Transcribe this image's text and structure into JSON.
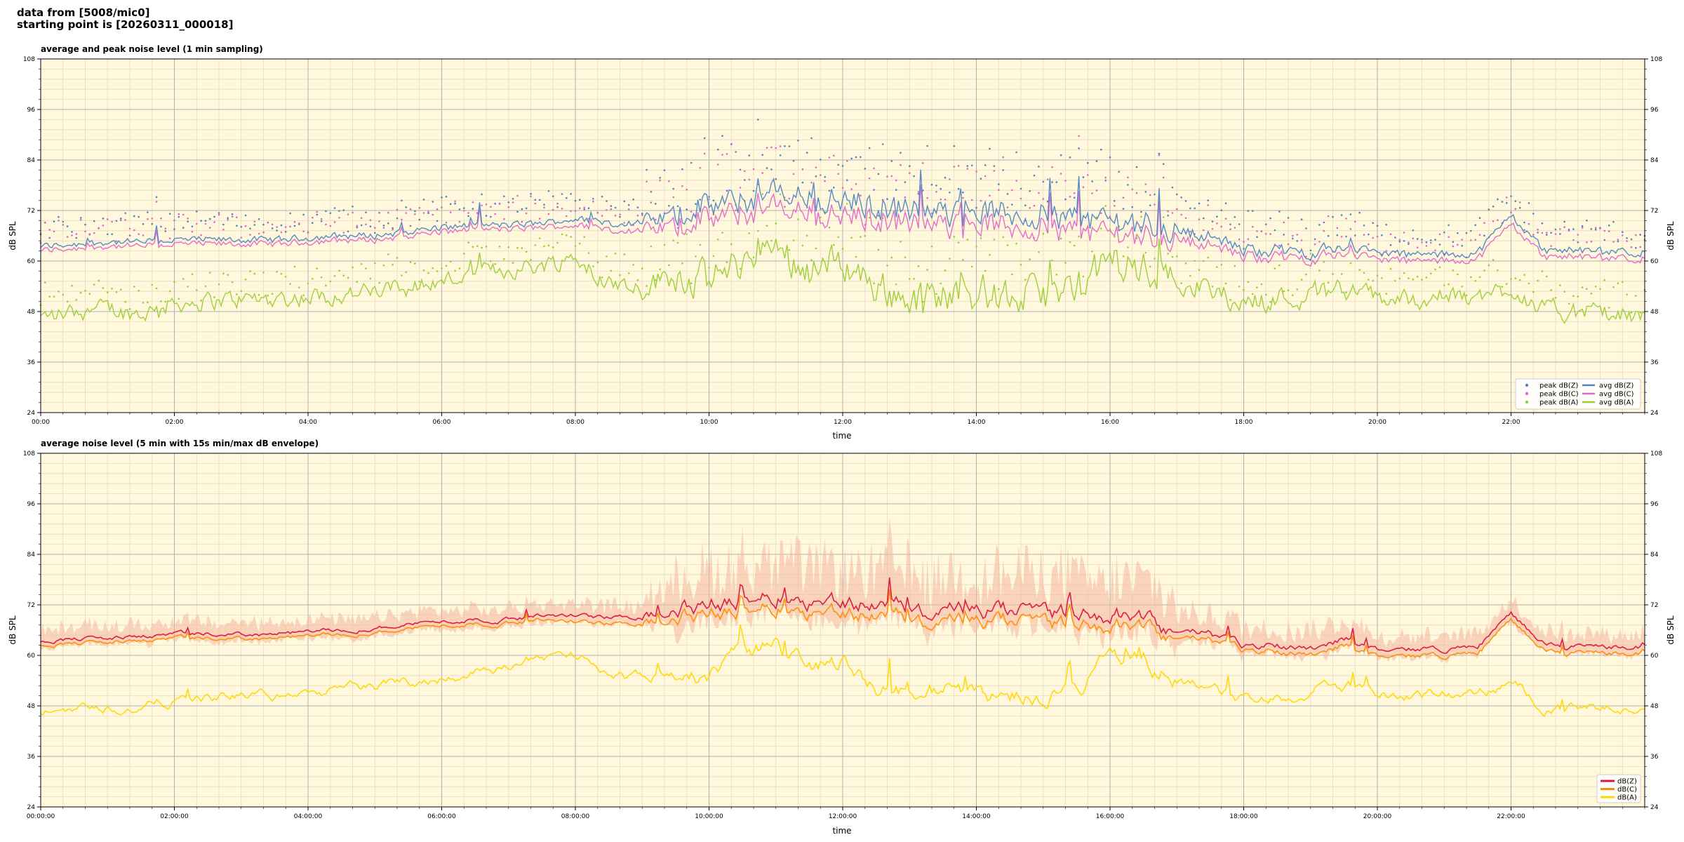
{
  "header": {
    "line1": "data from [5008/mic0]",
    "line2": "starting point is [20260311_000018]"
  },
  "colors": {
    "background": "#fff8dc",
    "dbz": "#4f84c4",
    "dbc": "#e066c8",
    "dba": "#9acd32",
    "dbz_bottom": "#dc143c",
    "dbc_bottom": "#ff8c00",
    "dba_bottom": "#ffd700",
    "envelope": "#f4b6a0"
  },
  "chart_data": [
    {
      "type": "line",
      "title": "average and peak noise level (1 min sampling)",
      "xlabel": "time",
      "ylabel": "dB SPL",
      "xlim": [
        0,
        24
      ],
      "ylim": [
        24,
        108
      ],
      "yticks": [
        24,
        36,
        48,
        60,
        72,
        84,
        96,
        108
      ],
      "xtick_labels": [
        "00:00",
        "02:00",
        "04:00",
        "06:00",
        "08:00",
        "10:00",
        "12:00",
        "14:00",
        "16:00",
        "18:00",
        "20:00",
        "22:00"
      ],
      "grid": true,
      "legend_position": "bottom-right",
      "legend": [
        "peak dB(Z)",
        "peak dB(C)",
        "peak dB(A)",
        "avg dB(Z)",
        "avg dB(C)",
        "avg dB(A)"
      ],
      "x": [
        0,
        0.5,
        1,
        1.5,
        2,
        2.5,
        3,
        3.5,
        4,
        4.5,
        5,
        5.5,
        6,
        6.5,
        7,
        7.5,
        8,
        8.5,
        9,
        9.5,
        10,
        10.5,
        11,
        11.5,
        12,
        12.5,
        13,
        13.5,
        14,
        14.5,
        15,
        15.5,
        16,
        16.5,
        17,
        17.5,
        18,
        18.5,
        19,
        19.5,
        20,
        20.5,
        21,
        21.5,
        22,
        22.5,
        23,
        23.5,
        24
      ],
      "series": [
        {
          "name": "avg dB(Z)",
          "values": [
            63.5,
            64.0,
            64.5,
            64.5,
            65.0,
            65.0,
            65.0,
            65.0,
            65.5,
            66.0,
            66.0,
            67.0,
            68.0,
            68.5,
            68.5,
            69.0,
            70.0,
            69.0,
            69.0,
            71.0,
            73.0,
            74.0,
            76.0,
            75.0,
            74.0,
            73.0,
            72.0,
            71.0,
            72.0,
            71.0,
            71.0,
            70.0,
            70.0,
            69.0,
            67.0,
            66.0,
            62.5,
            62.5,
            62.0,
            63.5,
            62.0,
            61.5,
            61.5,
            62.0,
            71.0,
            62.5,
            62.5,
            62.0,
            62.0
          ]
        },
        {
          "name": "avg dB(C)",
          "values": [
            62.5,
            63.0,
            63.5,
            63.5,
            64.0,
            64.0,
            64.0,
            64.0,
            64.5,
            65.0,
            65.0,
            66.0,
            67.0,
            67.5,
            67.5,
            68.0,
            68.5,
            67.5,
            67.0,
            68.5,
            70.0,
            71.0,
            72.5,
            71.5,
            70.5,
            70.0,
            69.0,
            68.0,
            69.0,
            68.0,
            68.0,
            67.0,
            67.0,
            66.0,
            65.0,
            64.0,
            61.0,
            61.0,
            60.5,
            62.0,
            60.5,
            60.0,
            60.0,
            60.5,
            69.0,
            61.0,
            61.0,
            60.5,
            60.5
          ]
        },
        {
          "name": "avg dB(A)",
          "values": [
            46.5,
            48.0,
            48.5,
            47.5,
            50.0,
            50.5,
            51.0,
            51.0,
            51.5,
            52.0,
            52.5,
            54.0,
            55.0,
            57.0,
            58.0,
            59.0,
            61.0,
            55.0,
            54.0,
            57.0,
            55.0,
            60.0,
            63.0,
            58.0,
            60.0,
            54.0,
            51.0,
            52.0,
            52.5,
            51.0,
            52.0,
            53.0,
            60.0,
            58.0,
            56.0,
            53.0,
            50.0,
            51.0,
            52.0,
            54.0,
            51.0,
            51.0,
            51.5,
            51.0,
            54.0,
            48.0,
            48.0,
            47.0,
            46.5
          ]
        }
      ]
    },
    {
      "type": "line",
      "title": "average noise level (5 min with 15s min/max dB envelope)",
      "xlabel": "time",
      "ylabel": "dB SPL",
      "xlim": [
        0,
        24
      ],
      "ylim": [
        24,
        108
      ],
      "yticks": [
        24,
        36,
        48,
        60,
        72,
        84,
        96,
        108
      ],
      "xtick_labels": [
        "00:00:00",
        "02:00:00",
        "04:00:00",
        "06:00:00",
        "08:00:00",
        "10:00:00",
        "12:00:00",
        "14:00:00",
        "16:00:00",
        "18:00:00",
        "20:00:00",
        "22:00:00"
      ],
      "grid": true,
      "legend_position": "bottom-right",
      "legend": [
        "dB(Z)",
        "dB(C)",
        "dB(A)"
      ],
      "x": [
        0,
        0.5,
        1,
        1.5,
        2,
        2.5,
        3,
        3.5,
        4,
        4.5,
        5,
        5.5,
        6,
        6.5,
        7,
        7.5,
        8,
        8.5,
        9,
        9.5,
        10,
        10.5,
        11,
        11.5,
        12,
        12.5,
        13,
        13.5,
        14,
        14.5,
        15,
        15.5,
        16,
        16.5,
        17,
        17.5,
        18,
        18.5,
        19,
        19.5,
        20,
        20.5,
        21,
        21.5,
        22,
        22.5,
        23,
        23.5,
        24
      ],
      "series": [
        {
          "name": "dB(Z)",
          "values": [
            63.5,
            64.0,
            64.0,
            64.5,
            65.0,
            65.0,
            65.0,
            65.0,
            65.5,
            66.0,
            66.5,
            67.5,
            68.0,
            68.5,
            68.5,
            69.5,
            69.5,
            69.0,
            69.0,
            71.0,
            72.0,
            73.5,
            74.5,
            73.5,
            73.0,
            72.0,
            71.0,
            70.0,
            70.5,
            70.0,
            70.0,
            69.5,
            70.0,
            68.0,
            66.0,
            65.0,
            62.0,
            62.5,
            62.0,
            64.0,
            61.5,
            61.5,
            61.5,
            62.0,
            70.0,
            62.5,
            62.0,
            62.0,
            62.0
          ]
        },
        {
          "name": "dB(C)",
          "values": [
            62.5,
            63.0,
            63.0,
            63.5,
            64.0,
            64.0,
            64.0,
            64.0,
            64.5,
            65.0,
            65.5,
            66.5,
            67.0,
            67.5,
            67.5,
            68.5,
            68.0,
            67.5,
            67.5,
            69.0,
            70.0,
            71.0,
            72.0,
            71.0,
            70.5,
            69.5,
            68.5,
            67.5,
            68.0,
            67.5,
            67.5,
            67.0,
            67.5,
            66.0,
            64.5,
            63.5,
            61.0,
            61.0,
            60.5,
            62.5,
            60.0,
            60.0,
            60.0,
            60.5,
            68.5,
            61.0,
            60.5,
            60.5,
            60.5
          ]
        },
        {
          "name": "dB(A)",
          "values": [
            46.5,
            47.5,
            48.0,
            47.5,
            49.5,
            50.0,
            50.5,
            50.5,
            51.0,
            51.5,
            52.5,
            53.5,
            55.0,
            56.5,
            57.5,
            59.0,
            60.0,
            55.5,
            54.0,
            56.0,
            55.5,
            59.5,
            62.0,
            57.5,
            59.0,
            53.5,
            51.0,
            51.5,
            52.0,
            50.5,
            51.5,
            52.5,
            59.0,
            57.5,
            55.5,
            52.5,
            49.5,
            50.5,
            51.5,
            53.5,
            50.5,
            50.5,
            51.0,
            50.5,
            53.5,
            48.0,
            47.5,
            47.0,
            46.5
          ]
        }
      ]
    }
  ]
}
